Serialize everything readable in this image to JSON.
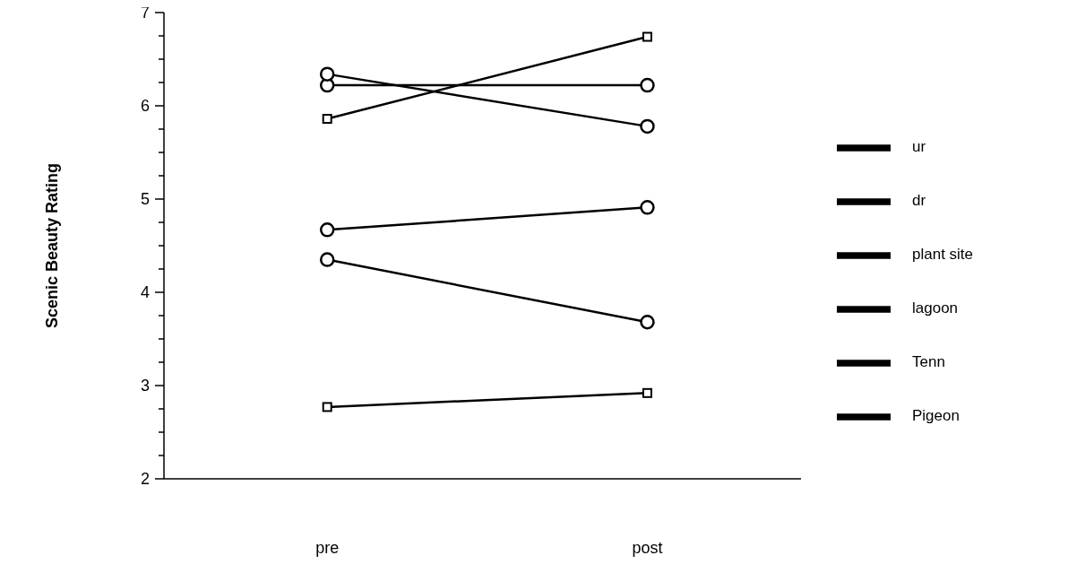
{
  "chart_data": {
    "type": "line",
    "ylabel": "Scenic Beauty Rating",
    "categories": [
      "pre",
      "post"
    ],
    "series": [
      {
        "name": "ur",
        "color": "#000000",
        "values": [
          6.22,
          6.22
        ],
        "marker": "circle"
      },
      {
        "name": "dr",
        "color": "#000000",
        "values": [
          6.34,
          5.78
        ],
        "marker": "circle"
      },
      {
        "name": "plant site",
        "color": "#000000",
        "values": [
          2.77,
          2.92
        ],
        "marker": "square"
      },
      {
        "name": "lagoon",
        "color": "#000000",
        "values": [
          4.35,
          3.68
        ],
        "marker": "circle"
      },
      {
        "name": "Tenn",
        "color": "#000000",
        "values": [
          4.67,
          4.91
        ],
        "marker": "circle"
      },
      {
        "name": "Pigeon",
        "color": "#000000",
        "values": [
          5.86,
          6.74
        ],
        "marker": "square"
      }
    ],
    "ylim": [
      2,
      7
    ],
    "yticks": [
      2,
      {
        "value": 2.25,
        "label": null
      },
      {
        "value": 2.5,
        "label": null
      },
      {
        "value": 2.75,
        "label": null
      },
      3,
      {
        "value": 3.25,
        "label": null
      },
      {
        "value": 3.5,
        "label": null
      },
      {
        "value": 3.75,
        "label": null
      },
      4,
      {
        "value": 4.25,
        "label": null
      },
      {
        "value": 4.5,
        "label": null
      },
      {
        "value": 4.75,
        "label": null
      },
      5,
      {
        "value": 5.25,
        "label": null
      },
      {
        "value": 5.5,
        "label": null
      },
      {
        "value": 5.75,
        "label": null
      },
      6,
      {
        "value": 6.25,
        "label": null
      },
      {
        "value": 6.5,
        "label": null
      },
      {
        "value": 6.75,
        "label": null
      },
      7
    ],
    "legend": "right",
    "line_style": "solid"
  }
}
